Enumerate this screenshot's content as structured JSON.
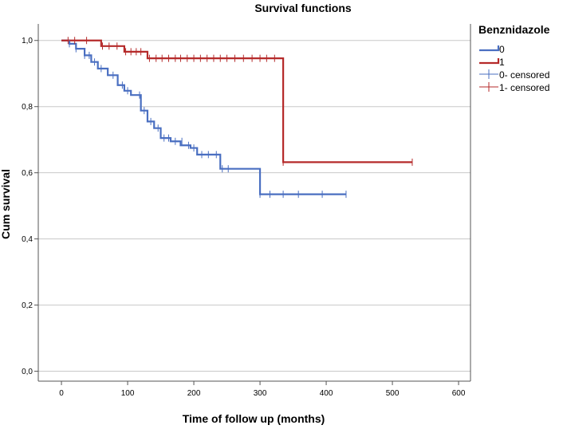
{
  "colors": {
    "series0": "#4a6fc1",
    "series1": "#b52a2a",
    "grid": "#c8c8c8",
    "axis": "#555555"
  },
  "chart_data": {
    "type": "line",
    "title": "Survival functions",
    "xlabel": "Time of follow up (months)",
    "ylabel": "Cum survival",
    "xlim": [
      -35,
      618
    ],
    "ylim": [
      -0.03,
      1.05
    ],
    "xticks": [
      0,
      100,
      200,
      300,
      400,
      500,
      600
    ],
    "xtick_labels": [
      "0",
      "100",
      "200",
      "300",
      "400",
      "500",
      "600"
    ],
    "yticks": [
      0.0,
      0.2,
      0.4,
      0.6,
      0.8,
      1.0
    ],
    "ytick_labels": [
      "0,0",
      "0,2",
      "0,4",
      "0,6",
      "0,8",
      "1,0"
    ],
    "grid": "horizontal",
    "legend": {
      "title": "Benznidazole",
      "placement": "right",
      "entries": [
        {
          "label": "0",
          "kind": "step",
          "series": 0
        },
        {
          "label": "1",
          "kind": "step",
          "series": 1
        },
        {
          "label": "0-  censored",
          "kind": "censor",
          "series": 0
        },
        {
          "label": "1-  censored",
          "kind": "censor",
          "series": 1
        }
      ]
    },
    "series": [
      {
        "name": "0",
        "step_x": [
          0,
          12,
          22,
          35,
          45,
          55,
          70,
          85,
          95,
          105,
          120,
          130,
          140,
          150,
          165,
          180,
          195,
          205,
          240,
          300,
          430
        ],
        "step_y": [
          1.0,
          0.99,
          0.975,
          0.955,
          0.935,
          0.915,
          0.895,
          0.865,
          0.848,
          0.835,
          0.788,
          0.755,
          0.735,
          0.705,
          0.695,
          0.683,
          0.675,
          0.655,
          0.612,
          0.535,
          0.535
        ],
        "censored": [
          [
            12,
            0.99
          ],
          [
            22,
            0.975
          ],
          [
            35,
            0.955
          ],
          [
            42,
            0.955
          ],
          [
            50,
            0.935
          ],
          [
            60,
            0.915
          ],
          [
            78,
            0.895
          ],
          [
            92,
            0.865
          ],
          [
            100,
            0.848
          ],
          [
            118,
            0.835
          ],
          [
            125,
            0.788
          ],
          [
            135,
            0.755
          ],
          [
            146,
            0.735
          ],
          [
            155,
            0.705
          ],
          [
            162,
            0.705
          ],
          [
            172,
            0.695
          ],
          [
            182,
            0.695
          ],
          [
            192,
            0.683
          ],
          [
            200,
            0.675
          ],
          [
            212,
            0.655
          ],
          [
            222,
            0.655
          ],
          [
            234,
            0.655
          ],
          [
            243,
            0.612
          ],
          [
            252,
            0.612
          ],
          [
            300,
            0.535
          ],
          [
            315,
            0.535
          ],
          [
            335,
            0.535
          ],
          [
            358,
            0.535
          ],
          [
            394,
            0.535
          ],
          [
            430,
            0.535
          ]
        ]
      },
      {
        "name": "1",
        "step_x": [
          0,
          60,
          95,
          130,
          335,
          530
        ],
        "step_y": [
          1.0,
          0.983,
          0.966,
          0.946,
          0.632,
          0.632
        ],
        "censored": [
          [
            10,
            1.0
          ],
          [
            20,
            1.0
          ],
          [
            38,
            1.0
          ],
          [
            62,
            0.983
          ],
          [
            72,
            0.983
          ],
          [
            84,
            0.983
          ],
          [
            97,
            0.966
          ],
          [
            105,
            0.966
          ],
          [
            113,
            0.966
          ],
          [
            120,
            0.966
          ],
          [
            133,
            0.946
          ],
          [
            143,
            0.946
          ],
          [
            152,
            0.946
          ],
          [
            162,
            0.946
          ],
          [
            172,
            0.946
          ],
          [
            180,
            0.946
          ],
          [
            190,
            0.946
          ],
          [
            200,
            0.946
          ],
          [
            210,
            0.946
          ],
          [
            220,
            0.946
          ],
          [
            230,
            0.946
          ],
          [
            240,
            0.946
          ],
          [
            250,
            0.946
          ],
          [
            262,
            0.946
          ],
          [
            275,
            0.946
          ],
          [
            288,
            0.946
          ],
          [
            300,
            0.946
          ],
          [
            310,
            0.946
          ],
          [
            322,
            0.946
          ],
          [
            335,
            0.632
          ],
          [
            530,
            0.632
          ]
        ]
      }
    ]
  }
}
